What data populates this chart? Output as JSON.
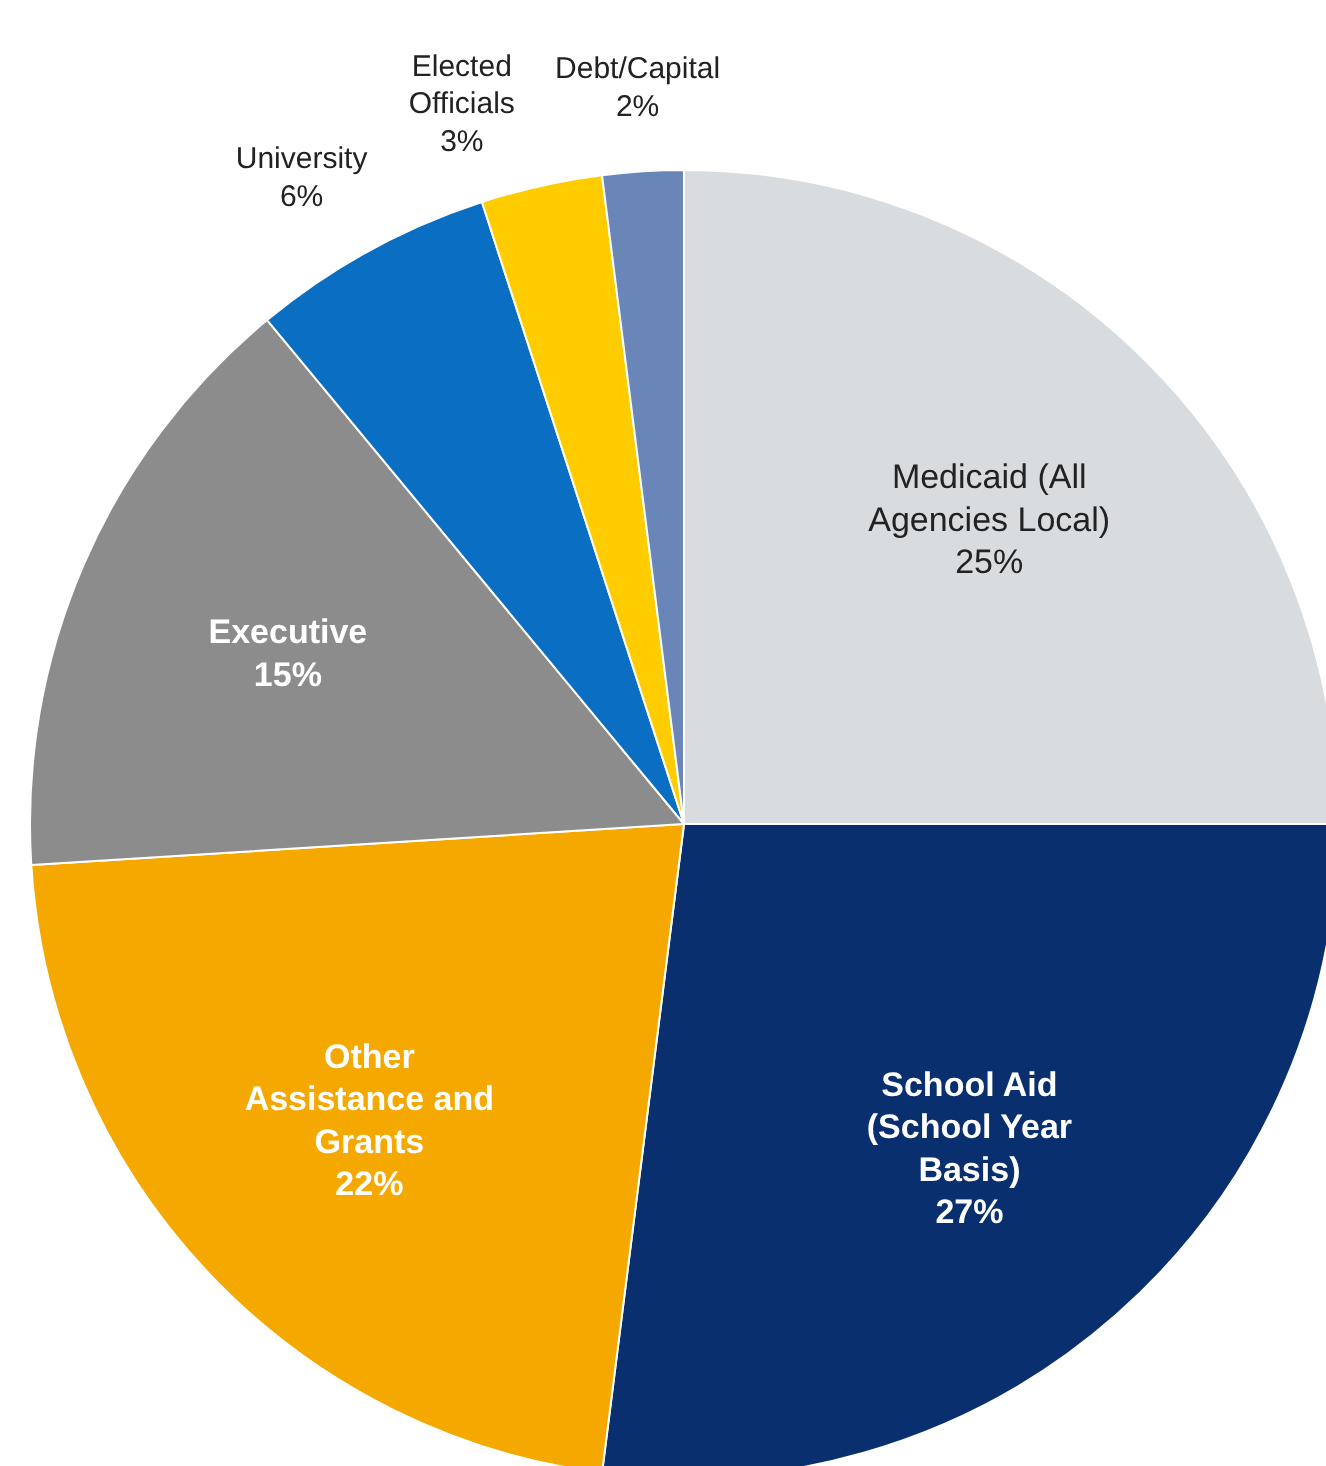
{
  "chart_data": {
    "type": "pie",
    "categories": [
      "Medicaid (All Agencies Local)",
      "School Aid (School Year Basis)",
      "Other Assistance and Grants",
      "Executive",
      "University",
      "Elected Officials",
      "Debt/Capital"
    ],
    "values": [
      25,
      27,
      22,
      15,
      6,
      3,
      2
    ],
    "colors": [
      "#d9dcdf",
      "#0a2f6e",
      "#f5a800",
      "#8c8c8c",
      "#0a6fc2",
      "#ffcc00",
      "#6a86b8"
    ],
    "value_labels": [
      "25%",
      "27%",
      "22%",
      "15%",
      "6%",
      "3%",
      "2%"
    ]
  }
}
